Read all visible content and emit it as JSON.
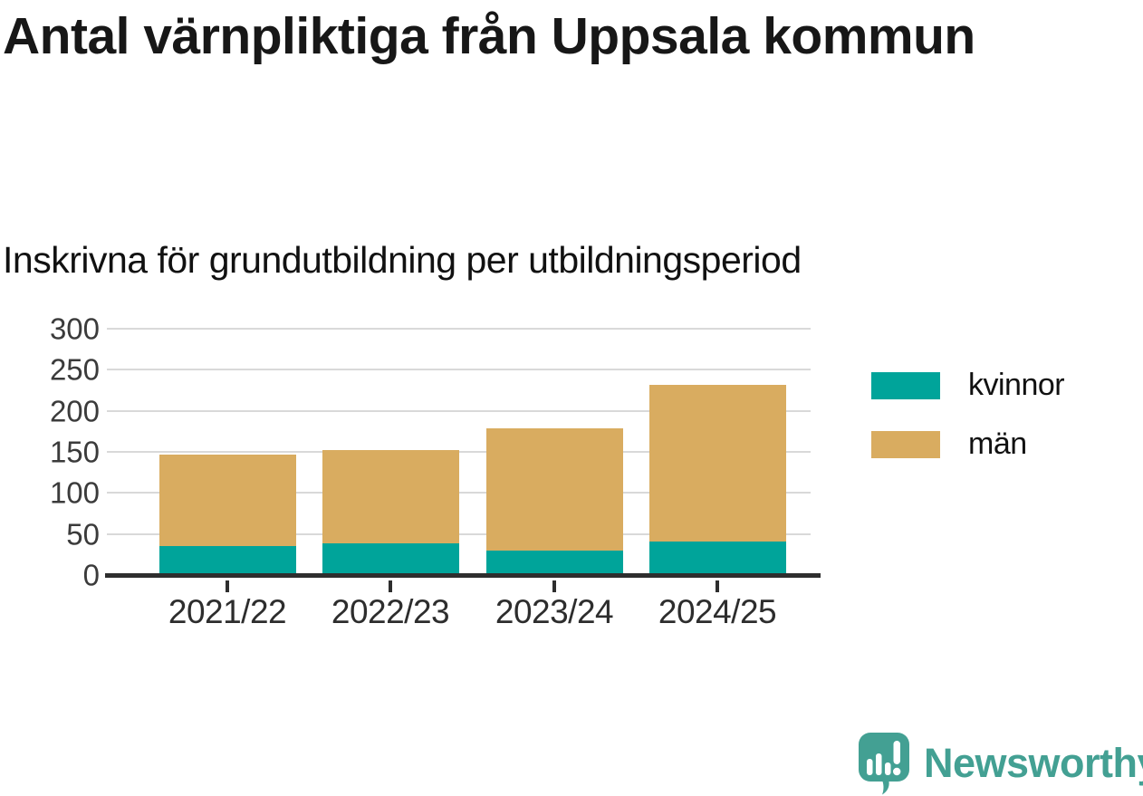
{
  "header": {
    "title": "Antal värnpliktiga från Uppsala kommun",
    "subtitle": "Inskrivna för grundutbildning per utbildningsperiod"
  },
  "chart_data": {
    "type": "bar",
    "stacked": true,
    "title": "Antal värnpliktiga från Uppsala kommun",
    "subtitle": "Inskrivna för grundutbildning per utbildningsperiod",
    "categories": [
      "2021/22",
      "2022/23",
      "2023/24",
      "2024/25"
    ],
    "series": [
      {
        "name": "kvinnor",
        "color": "#00a49a",
        "values": [
          33,
          36,
          28,
          39
        ]
      },
      {
        "name": "män",
        "color": "#d9ac60",
        "values": [
          112,
          114,
          148,
          190
        ]
      }
    ],
    "stacked_totals": [
      145,
      150,
      176,
      229
    ],
    "xlabel": "",
    "ylabel": "",
    "ylim": [
      0,
      300
    ],
    "yticks": [
      0,
      50,
      100,
      150,
      200,
      250,
      300
    ],
    "grid": true,
    "legend_position": "right"
  },
  "legend": {
    "items": [
      {
        "label": "kvinnor",
        "color": "#00a49a"
      },
      {
        "label": "män",
        "color": "#d9ac60"
      }
    ]
  },
  "footer": {
    "brand": "Newsworthy",
    "brand_color": "#43a093",
    "logo_icon": "newsworthy-speech-bubble-bar-chart-icon"
  },
  "colors": {
    "background": "#ffffff",
    "title_text": "#171717",
    "axis": "#2e2e2e",
    "gridline": "#d9d9d9",
    "tick_label": "#3b3b3b",
    "series_kvinnor": "#00a49a",
    "series_man": "#d9ac60",
    "brand": "#43a093"
  }
}
